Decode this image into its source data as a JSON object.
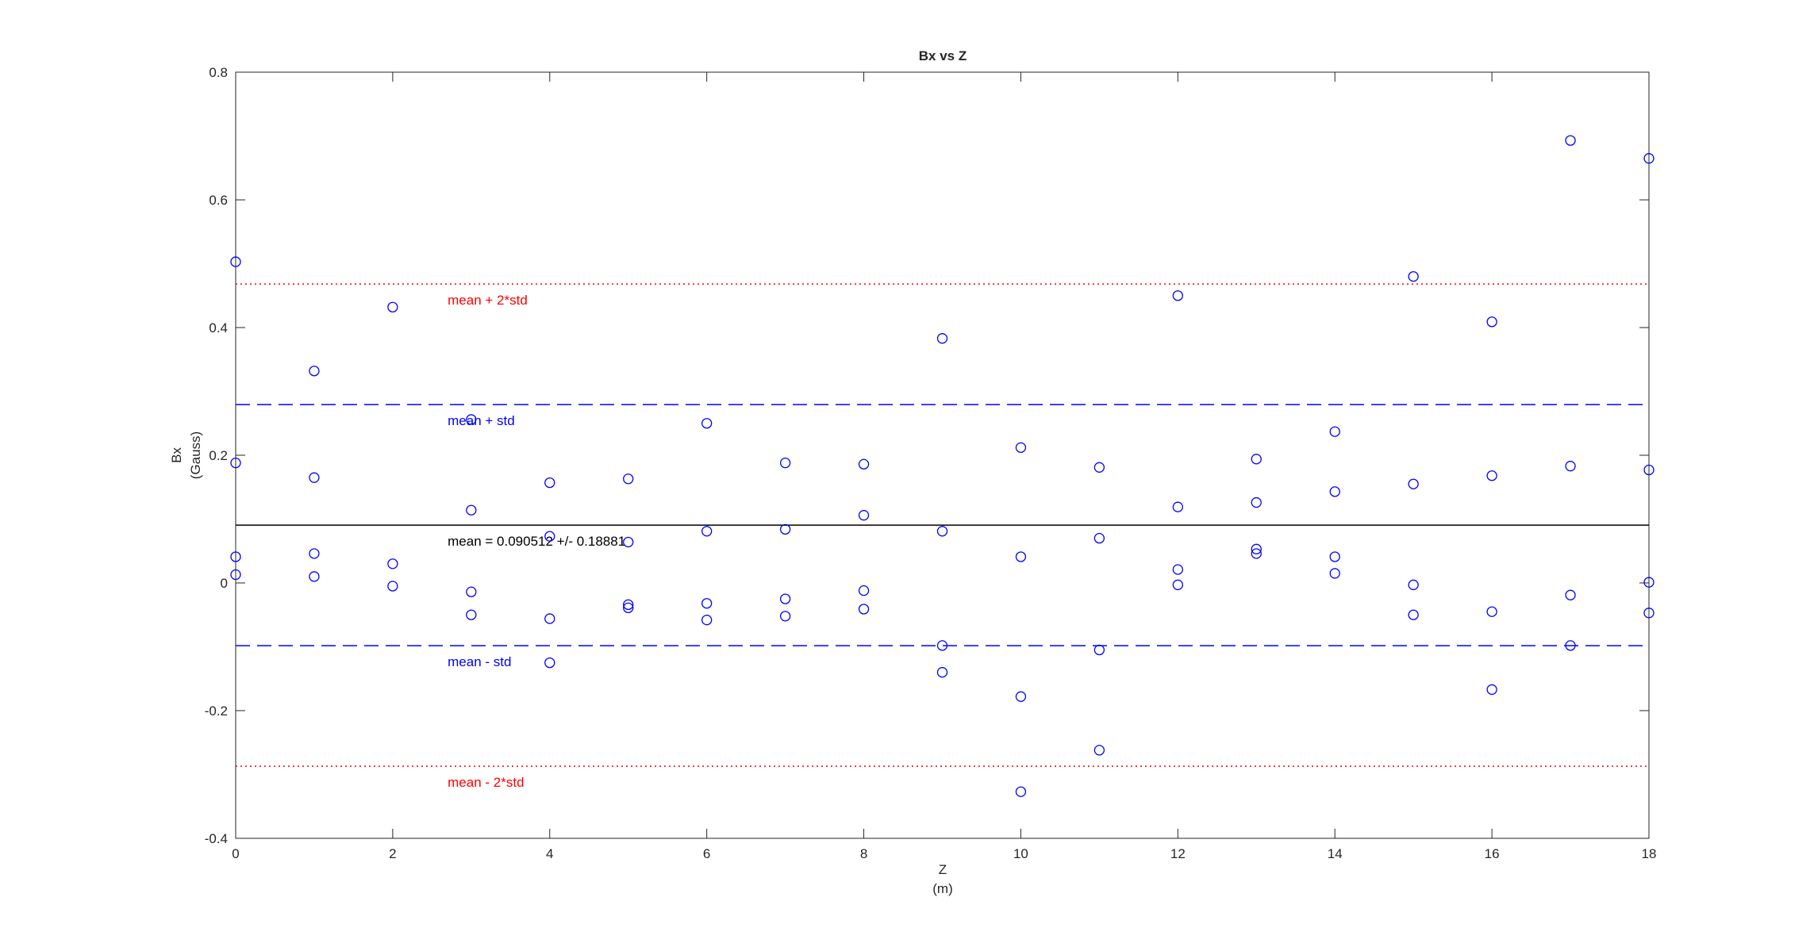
{
  "chart_data": {
    "type": "scatter",
    "title": "Bx vs Z",
    "xlabel": [
      "Z",
      "(m)"
    ],
    "ylabel": [
      "Bx",
      "(Gauss)"
    ],
    "xlim": [
      0,
      18
    ],
    "xticks": [
      0,
      2,
      4,
      6,
      8,
      10,
      12,
      14,
      16,
      18
    ],
    "ylim": [
      -0.4,
      0.8
    ],
    "yticks": [
      -0.4,
      -0.2,
      0,
      0.2,
      0.4,
      0.6,
      0.8
    ],
    "series": [
      {
        "name": "Bx",
        "color": "#0000ff",
        "x": [
          0,
          0,
          0,
          0,
          1,
          1,
          1,
          1,
          2,
          2,
          2,
          3,
          3,
          3,
          3,
          4,
          4,
          4,
          4,
          5,
          5,
          5,
          5,
          6,
          6,
          6,
          6,
          7,
          7,
          7,
          7,
          8,
          8,
          8,
          8,
          9,
          9,
          9,
          9,
          10,
          10,
          10,
          10,
          11,
          11,
          11,
          11,
          12,
          12,
          12,
          12,
          13,
          13,
          13,
          13,
          14,
          14,
          14,
          14,
          15,
          15,
          15,
          15,
          16,
          16,
          16,
          16,
          17,
          17,
          17,
          17,
          18,
          18,
          18,
          18
        ],
        "values": [
          0.503,
          0.188,
          0.041,
          0.013,
          0.332,
          0.165,
          0.046,
          0.01,
          0.432,
          0.03,
          -0.005,
          0.256,
          0.114,
          -0.014,
          -0.05,
          0.157,
          0.073,
          -0.056,
          -0.125,
          0.163,
          0.064,
          -0.034,
          -0.039,
          0.25,
          0.081,
          -0.032,
          -0.058,
          0.188,
          0.084,
          -0.025,
          -0.052,
          0.186,
          0.106,
          -0.012,
          -0.041,
          0.383,
          0.081,
          -0.098,
          -0.14,
          0.212,
          0.041,
          -0.178,
          -0.327,
          0.181,
          0.07,
          -0.105,
          -0.262,
          0.45,
          0.119,
          0.021,
          -0.003,
          0.194,
          0.126,
          0.053,
          0.046,
          0.237,
          0.143,
          0.041,
          0.015,
          0.48,
          0.155,
          -0.003,
          -0.05,
          0.409,
          0.168,
          -0.045,
          -0.167,
          0.693,
          0.183,
          -0.019,
          -0.098,
          0.665,
          0.177,
          0.001,
          -0.047
        ]
      }
    ],
    "reference_lines": [
      {
        "value": 0.4681,
        "label": "mean + 2*std",
        "color": "#ff0000",
        "style": "dotted"
      },
      {
        "value": 0.2793,
        "label": "mean + std",
        "color": "#0000ff",
        "style": "dashed"
      },
      {
        "value": 0.090512,
        "label": "mean = 0.090512 +/- 0.18881",
        "color": "#000000",
        "style": "solid"
      },
      {
        "value": -0.0983,
        "label": "mean - std",
        "color": "#0000ff",
        "style": "dashed"
      },
      {
        "value": -0.2871,
        "label": "mean - 2*std",
        "color": "#ff0000",
        "style": "dotted"
      }
    ],
    "label_x": 2.7
  }
}
